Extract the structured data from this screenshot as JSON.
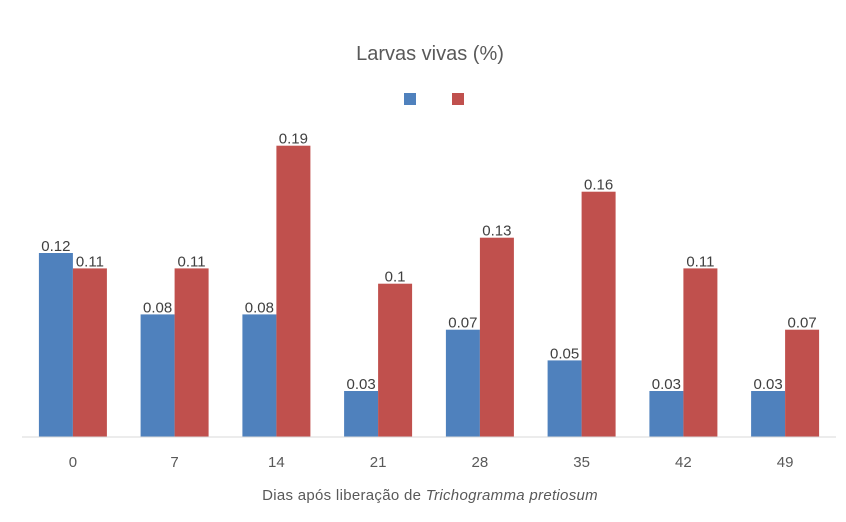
{
  "chart_data": {
    "type": "bar",
    "title": "Larvas vivas (%)",
    "xlabel": {
      "prefix": "Dias após liberação de ",
      "italic": "Trichogramma pretiosum"
    },
    "ylabel": "",
    "categories": [
      "0",
      "7",
      "14",
      "21",
      "28",
      "35",
      "42",
      "49"
    ],
    "series": [
      {
        "color": "#4f81bd",
        "values": [
          0.12,
          0.08,
          0.08,
          0.03,
          0.07,
          0.05,
          0.03,
          0.03
        ]
      },
      {
        "color": "#c0504d",
        "values": [
          0.11,
          0.11,
          0.19,
          0.1,
          0.13,
          0.16,
          0.11,
          0.07
        ]
      }
    ],
    "ylim": [
      0,
      0.2
    ],
    "grid": false,
    "legend": "top-center"
  }
}
